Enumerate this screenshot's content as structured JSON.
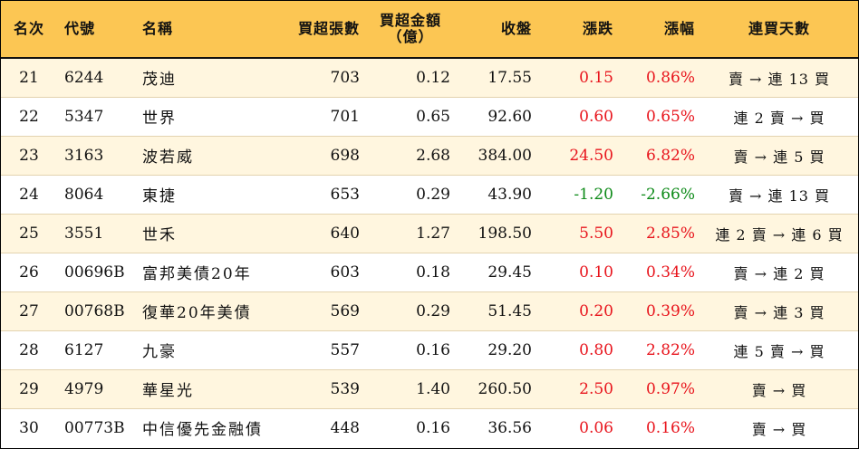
{
  "table": {
    "headers": {
      "rank": "名次",
      "code": "代號",
      "name": "名稱",
      "net_buy_lots": "買超張數",
      "net_buy_amount_line1": "買超金額",
      "net_buy_amount_line2": "（億）",
      "close": "收盤",
      "change": "漲跌",
      "change_pct": "漲幅",
      "streak_days": "連買天數"
    },
    "colors": {
      "up": "#e8141c",
      "down": "#0d8a18",
      "header_bg": "#fcc653",
      "stripe_bg": "#fff6df"
    },
    "rows": [
      {
        "rank": "21",
        "code": "6244",
        "name": "茂迪",
        "net_buy_lots": "703",
        "net_buy_amount": "0.12",
        "close": "17.55",
        "change": "0.15",
        "change_pct": "0.86%",
        "streak": "賣 → 連 13 買",
        "direction": "up"
      },
      {
        "rank": "22",
        "code": "5347",
        "name": "世界",
        "net_buy_lots": "701",
        "net_buy_amount": "0.65",
        "close": "92.60",
        "change": "0.60",
        "change_pct": "0.65%",
        "streak": "連 2 賣 → 買",
        "direction": "up"
      },
      {
        "rank": "23",
        "code": "3163",
        "name": "波若威",
        "net_buy_lots": "698",
        "net_buy_amount": "2.68",
        "close": "384.00",
        "change": "24.50",
        "change_pct": "6.82%",
        "streak": "賣 → 連 5 買",
        "direction": "up"
      },
      {
        "rank": "24",
        "code": "8064",
        "name": "東捷",
        "net_buy_lots": "653",
        "net_buy_amount": "0.29",
        "close": "43.90",
        "change": "-1.20",
        "change_pct": "-2.66%",
        "streak": "賣 → 連 13 買",
        "direction": "down"
      },
      {
        "rank": "25",
        "code": "3551",
        "name": "世禾",
        "net_buy_lots": "640",
        "net_buy_amount": "1.27",
        "close": "198.50",
        "change": "5.50",
        "change_pct": "2.85%",
        "streak": "連 2 賣 → 連 6 買",
        "direction": "up"
      },
      {
        "rank": "26",
        "code": "00696B",
        "name": "富邦美債20年",
        "net_buy_lots": "603",
        "net_buy_amount": "0.18",
        "close": "29.45",
        "change": "0.10",
        "change_pct": "0.34%",
        "streak": "賣 → 連 2 買",
        "direction": "up"
      },
      {
        "rank": "27",
        "code": "00768B",
        "name": "復華20年美債",
        "net_buy_lots": "569",
        "net_buy_amount": "0.29",
        "close": "51.45",
        "change": "0.20",
        "change_pct": "0.39%",
        "streak": "賣 → 連 3 買",
        "direction": "up"
      },
      {
        "rank": "28",
        "code": "6127",
        "name": "九豪",
        "net_buy_lots": "557",
        "net_buy_amount": "0.16",
        "close": "29.20",
        "change": "0.80",
        "change_pct": "2.82%",
        "streak": "連 5 賣 → 買",
        "direction": "up"
      },
      {
        "rank": "29",
        "code": "4979",
        "name": "華星光",
        "net_buy_lots": "539",
        "net_buy_amount": "1.40",
        "close": "260.50",
        "change": "2.50",
        "change_pct": "0.97%",
        "streak": "賣 → 買",
        "direction": "up"
      },
      {
        "rank": "30",
        "code": "00773B",
        "name": "中信優先金融債",
        "net_buy_lots": "448",
        "net_buy_amount": "0.16",
        "close": "36.56",
        "change": "0.06",
        "change_pct": "0.16%",
        "streak": "賣 → 買",
        "direction": "up"
      }
    ]
  }
}
